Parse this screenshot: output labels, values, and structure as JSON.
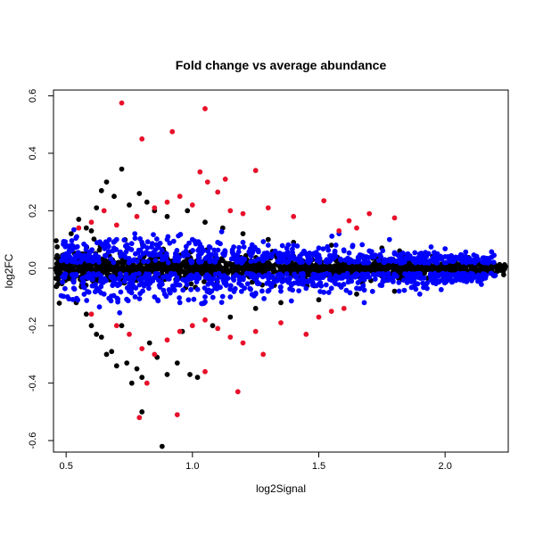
{
  "chart_data": {
    "type": "scatter",
    "title": "Fold change vs average abundance",
    "xlabel": "log2Signal",
    "ylabel": "log2FC",
    "xlim": [
      0.45,
      2.25
    ],
    "ylim": [
      -0.64,
      0.62
    ],
    "xticks": [
      0.5,
      1.0,
      1.5,
      2.0
    ],
    "xtick_labels": [
      "0.5",
      "1.0",
      "1.5",
      "2.0"
    ],
    "yticks": [
      -0.6,
      -0.4,
      -0.2,
      0.0,
      0.2,
      0.4,
      0.6
    ],
    "ytick_labels": [
      "-0.6",
      "-0.4",
      "-0.2",
      "0.0",
      "0.2",
      "0.4",
      "0.6"
    ],
    "grid": false,
    "legend": "none",
    "colors": {
      "black_series": "#000000",
      "blue_series": "#0000ff",
      "red_series": "#e8102a"
    },
    "series": [
      {
        "color": "#000000",
        "note": "dense band of points along 0 plus scattered outliers",
        "points": [
          [
            0.72,
            0.345
          ],
          [
            0.66,
            0.3
          ],
          [
            0.64,
            0.27
          ],
          [
            0.69,
            0.25
          ],
          [
            0.79,
            0.26
          ],
          [
            0.82,
            0.23
          ],
          [
            0.62,
            0.21
          ],
          [
            0.75,
            0.22
          ],
          [
            0.55,
            0.17
          ],
          [
            0.58,
            0.14
          ],
          [
            0.52,
            0.12
          ],
          [
            0.6,
            0.13
          ],
          [
            0.85,
            0.2
          ],
          [
            0.9,
            0.18
          ],
          [
            0.98,
            0.2
          ],
          [
            1.05,
            0.16
          ],
          [
            1.12,
            0.14
          ],
          [
            1.2,
            0.12
          ],
          [
            1.3,
            0.1
          ],
          [
            1.4,
            0.09
          ],
          [
            1.55,
            0.08
          ],
          [
            1.75,
            0.07
          ],
          [
            1.82,
            0.06
          ],
          [
            0.54,
            -0.12
          ],
          [
            0.58,
            -0.16
          ],
          [
            0.6,
            -0.2
          ],
          [
            0.64,
            -0.24
          ],
          [
            0.68,
            -0.29
          ],
          [
            0.7,
            -0.34
          ],
          [
            0.66,
            -0.3
          ],
          [
            0.74,
            -0.33
          ],
          [
            0.78,
            -0.35
          ],
          [
            0.8,
            -0.38
          ],
          [
            0.83,
            -0.26
          ],
          [
            0.86,
            -0.31
          ],
          [
            0.9,
            -0.37
          ],
          [
            0.94,
            -0.33
          ],
          [
            0.99,
            -0.37
          ],
          [
            1.02,
            -0.38
          ],
          [
            0.76,
            -0.4
          ],
          [
            0.8,
            -0.5
          ],
          [
            0.88,
            -0.62
          ],
          [
            1.08,
            -0.2
          ],
          [
            1.15,
            -0.17
          ],
          [
            1.25,
            -0.14
          ],
          [
            1.35,
            -0.12
          ],
          [
            1.5,
            -0.11
          ],
          [
            1.65,
            -0.09
          ],
          [
            1.8,
            -0.08
          ],
          [
            0.62,
            -0.23
          ],
          [
            0.72,
            -0.2
          ],
          [
            0.96,
            -0.22
          ]
        ]
      },
      {
        "color": "#0000ff",
        "note": "band of points just above and below 0 across the full x range",
        "points": [
          [
            0.5,
            0.05
          ],
          [
            0.53,
            -0.07
          ],
          [
            0.6,
            0.06
          ],
          [
            0.65,
            -0.09
          ],
          [
            0.7,
            0.1
          ],
          [
            0.75,
            -0.08
          ],
          [
            0.8,
            0.09
          ],
          [
            0.85,
            -0.1
          ],
          [
            0.9,
            0.1
          ],
          [
            0.95,
            -0.12
          ],
          [
            1.0,
            0.1
          ],
          [
            1.05,
            -0.1
          ],
          [
            1.1,
            0.09
          ],
          [
            1.15,
            -0.1
          ],
          [
            1.2,
            0.09
          ],
          [
            1.25,
            -0.09
          ],
          [
            1.3,
            0.08
          ],
          [
            1.35,
            -0.08
          ],
          [
            1.4,
            0.08
          ],
          [
            1.45,
            -0.07
          ],
          [
            1.5,
            0.07
          ],
          [
            1.55,
            -0.07
          ],
          [
            1.6,
            0.06
          ],
          [
            1.65,
            -0.07
          ],
          [
            1.7,
            0.06
          ],
          [
            1.75,
            -0.06
          ],
          [
            1.8,
            0.05
          ],
          [
            1.85,
            -0.05
          ],
          [
            1.9,
            0.05
          ],
          [
            1.95,
            -0.04
          ],
          [
            2.0,
            0.04
          ],
          [
            2.05,
            -0.03
          ],
          [
            2.1,
            0.03
          ],
          [
            2.15,
            -0.02
          ],
          [
            1.58,
            0.12
          ],
          [
            1.68,
            -0.12
          ],
          [
            1.78,
            0.1
          ],
          [
            1.9,
            -0.09
          ]
        ]
      },
      {
        "color": "#e8102a",
        "note": "outliers above and below the blue band",
        "points": [
          [
            0.72,
            0.575
          ],
          [
            1.05,
            0.555
          ],
          [
            0.8,
            0.45
          ],
          [
            0.92,
            0.475
          ],
          [
            1.03,
            0.335
          ],
          [
            1.25,
            0.34
          ],
          [
            1.06,
            0.3
          ],
          [
            1.1,
            0.265
          ],
          [
            1.13,
            0.31
          ],
          [
            0.9,
            0.23
          ],
          [
            0.85,
            0.21
          ],
          [
            0.95,
            0.25
          ],
          [
            1.0,
            0.22
          ],
          [
            1.15,
            0.2
          ],
          [
            1.2,
            0.19
          ],
          [
            1.3,
            0.21
          ],
          [
            1.4,
            0.18
          ],
          [
            1.52,
            0.235
          ],
          [
            1.62,
            0.165
          ],
          [
            1.7,
            0.19
          ],
          [
            1.8,
            0.175
          ],
          [
            1.58,
            0.13
          ],
          [
            1.65,
            0.14
          ],
          [
            0.6,
            0.16
          ],
          [
            0.7,
            0.15
          ],
          [
            0.78,
            0.18
          ],
          [
            0.65,
            0.2
          ],
          [
            0.55,
            0.14
          ],
          [
            0.6,
            -0.16
          ],
          [
            0.7,
            -0.2
          ],
          [
            0.75,
            -0.23
          ],
          [
            0.8,
            -0.28
          ],
          [
            0.85,
            -0.3
          ],
          [
            0.9,
            -0.25
          ],
          [
            0.95,
            -0.22
          ],
          [
            1.0,
            -0.2
          ],
          [
            1.05,
            -0.18
          ],
          [
            1.1,
            -0.21
          ],
          [
            1.15,
            -0.24
          ],
          [
            1.2,
            -0.26
          ],
          [
            1.25,
            -0.22
          ],
          [
            1.28,
            -0.3
          ],
          [
            1.35,
            -0.19
          ],
          [
            1.45,
            -0.23
          ],
          [
            1.5,
            -0.17
          ],
          [
            1.55,
            -0.15
          ],
          [
            1.6,
            -0.14
          ],
          [
            1.18,
            -0.43
          ],
          [
            0.94,
            -0.51
          ],
          [
            0.79,
            -0.52
          ],
          [
            0.82,
            -0.4
          ],
          [
            1.05,
            -0.36
          ]
        ]
      }
    ]
  }
}
